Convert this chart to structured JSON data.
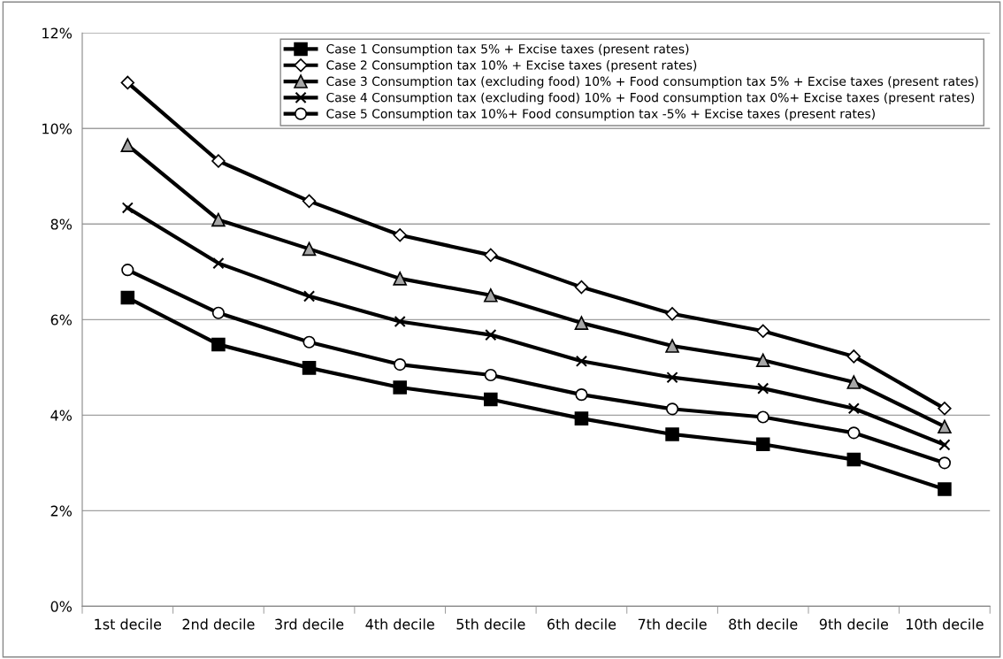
{
  "chart_data": {
    "type": "line",
    "categories": [
      "1st decile",
      "2nd decile",
      "3rd decile",
      "4th decile",
      "5th decile",
      "6th decile",
      "7th decile",
      "8th decile",
      "9th decile",
      "10th decile"
    ],
    "series": [
      {
        "name": "Case 1 Consumption tax 5% + Excise taxes (present rates)",
        "color": "#000000",
        "marker": "square",
        "values": [
          6.46,
          5.48,
          4.99,
          4.58,
          4.33,
          3.93,
          3.6,
          3.39,
          3.07,
          2.45
        ]
      },
      {
        "name": "Case 2 Consumption tax 10% + Excise taxes (present rates)",
        "color": "#000000",
        "marker": "diamond",
        "values": [
          10.96,
          9.32,
          8.48,
          7.77,
          7.35,
          6.68,
          6.12,
          5.76,
          5.23,
          4.14
        ]
      },
      {
        "name": "Case 3 Consumption tax (excluding food) 10% + Food consumption tax 5% + Excise taxes (present rates)",
        "color": "#000000",
        "marker": "triangle",
        "values": [
          9.65,
          8.09,
          7.48,
          6.86,
          6.51,
          5.93,
          5.45,
          5.15,
          4.69,
          3.76
        ]
      },
      {
        "name": "Case 4 Consumption tax (excluding food) 10% + Food consumption tax 0%+ Excise taxes (present rates)",
        "color": "#000000",
        "marker": "cross",
        "values": [
          8.34,
          7.18,
          6.49,
          5.96,
          5.68,
          5.13,
          4.79,
          4.56,
          4.14,
          3.38
        ]
      },
      {
        "name": "Case 5 Consumption tax 10%+ Food consumption tax -5% + Excise taxes (present rates)",
        "color": "#000000",
        "marker": "circle",
        "values": [
          7.04,
          6.14,
          5.53,
          5.06,
          4.84,
          4.43,
          4.13,
          3.96,
          3.63,
          3.0
        ]
      }
    ],
    "ylim": [
      0,
      12
    ],
    "yticks": [
      {
        "value": 0,
        "label": "0%"
      },
      {
        "value": 2,
        "label": "2%"
      },
      {
        "value": 4,
        "label": "4%"
      },
      {
        "value": 6,
        "label": "6%"
      },
      {
        "value": 8,
        "label": "8%"
      },
      {
        "value": 10,
        "label": "10%"
      },
      {
        "value": 12,
        "label": "12%"
      }
    ],
    "grid": "y",
    "legend": "top right",
    "line_style": "solid"
  }
}
